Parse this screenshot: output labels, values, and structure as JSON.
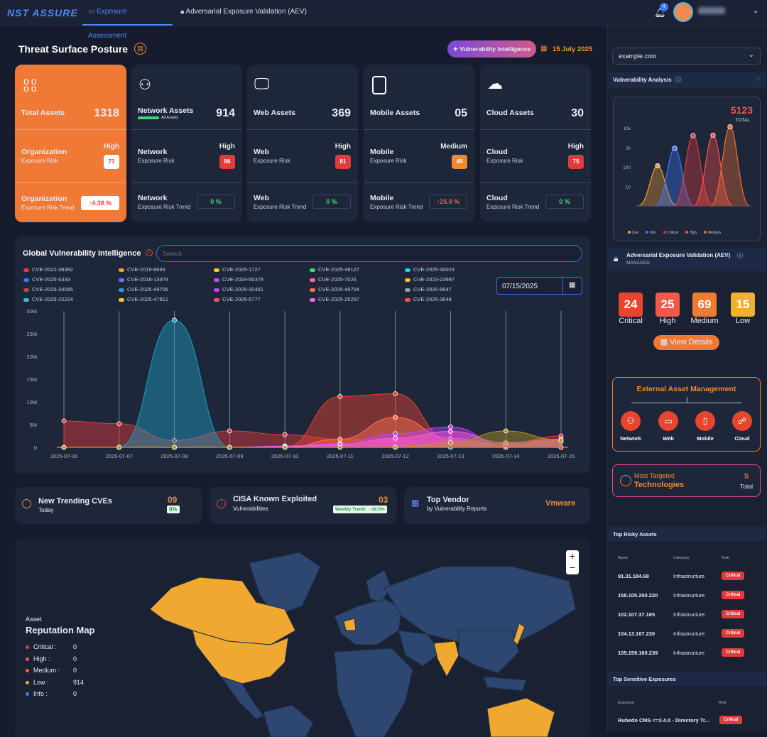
{
  "header": {
    "logo": "NST ASSURE",
    "tabs": [
      {
        "label": "Exposure Assessment",
        "active": true
      },
      {
        "label": "Adversarial Exposure Validation (AEV)",
        "active": false
      }
    ],
    "notification_count": "4",
    "user_name": "Rahul R"
  },
  "posture": {
    "title": "Threat Surface Posture",
    "vuln_intel_button": "Vulnerability Intelligence",
    "date": "15 July 2025"
  },
  "total": {
    "label": "Total Assets",
    "value": "1318",
    "org_risk_label": "Organization",
    "org_risk_sub": "Exposure Risk",
    "org_risk_level": "High",
    "org_risk_score": "73",
    "trend_label": "Organization",
    "trend_sub": "Exposure Risk Trend",
    "trend_value": "4.38 %"
  },
  "assets": [
    {
      "label": "Network Assets",
      "sub": "All Assets",
      "value": "914",
      "risk_label": "Network",
      "risk_sub": "Exposure Risk",
      "level": "High",
      "score": "86",
      "score_color": "#e23b3b",
      "trend_label": "Network",
      "trend_sub": "Exposure Risk Trend",
      "trend": "0 %",
      "trend_color": "#3ed67a"
    },
    {
      "label": "Web Assets",
      "value": "369",
      "risk_label": "Web",
      "risk_sub": "Exposure Risk",
      "level": "High",
      "score": "81",
      "score_color": "#e23b3b",
      "trend_label": "Web",
      "trend_sub": "Exposure Risk Trend",
      "trend": "0 %",
      "trend_color": "#3ed67a"
    },
    {
      "label": "Mobile Assets",
      "value": "05",
      "risk_label": "Mobile",
      "risk_sub": "Exposure Risk",
      "level": "Medium",
      "score": "49",
      "score_color": "#f08a30",
      "trend_label": "Mobile",
      "trend_sub": "Exposure Risk Trend",
      "trend": "25.9 %",
      "trend_color": "#ff5c5c"
    },
    {
      "label": "Cloud Assets",
      "value": "30",
      "risk_label": "Cloud",
      "risk_sub": "Exposure Risk",
      "level": "High",
      "score": "75",
      "score_color": "#e23b3b",
      "trend_label": "Cloud",
      "trend_sub": "Exposure Risk Trend",
      "trend": "0 %",
      "trend_color": "#3ed67a"
    }
  ],
  "gvi": {
    "title": "Global Vulnerability Intelligence",
    "search_placeholder": "Search",
    "date_value": "07/15/2025",
    "legend": [
      {
        "name": "CVE-2022-38392",
        "color": "#e23b3b"
      },
      {
        "name": "CVE-2019-6693",
        "color": "#f0a030"
      },
      {
        "name": "CVE-2025-1727",
        "color": "#e8d030"
      },
      {
        "name": "CVE-2025-49127",
        "color": "#3ed67a"
      },
      {
        "name": "CVE-2025-30023",
        "color": "#2ad0e0"
      },
      {
        "name": "CVE-2025-5333",
        "color": "#3a7aff"
      },
      {
        "name": "CVE-2018-13379",
        "color": "#7a6aff"
      },
      {
        "name": "CVE-2024-50379",
        "color": "#b050ff"
      },
      {
        "name": "CVE-2025-7026",
        "color": "#ff6a9a"
      },
      {
        "name": "CVE-2023-23997",
        "color": "#f0c020"
      },
      {
        "name": "CVE-2025-34085",
        "color": "#e23b3b"
      },
      {
        "name": "CVE-2025-49706",
        "color": "#3a90e0"
      },
      {
        "name": "CVE-2025-32461",
        "color": "#c040ff"
      },
      {
        "name": "CVE-2025-49704",
        "color": "#ff7050"
      },
      {
        "name": "CVE-2020-9547",
        "color": "#9aa0b0"
      },
      {
        "name": "CVE-2025-22224",
        "color": "#30c0d0"
      },
      {
        "name": "CVE-2025-47812",
        "color": "#f0d020"
      },
      {
        "name": "CVE-2025-5777",
        "color": "#ff5060"
      },
      {
        "name": "CVE-2025-25257",
        "color": "#ff60e0"
      },
      {
        "name": "CVE-2025-3648",
        "color": "#ff5040"
      }
    ]
  },
  "chart_data": {
    "type": "area",
    "x": [
      "2025-07-06",
      "2025-07-07",
      "2025-07-08",
      "2025-07-09",
      "2025-07-10",
      "2025-07-11",
      "2025-07-12",
      "2025-07-13",
      "2025-07-14",
      "2025-07-15"
    ],
    "yticks": [
      "0",
      "5M",
      "10M",
      "15M",
      "20M",
      "25M",
      "30M"
    ],
    "ylim": [
      0,
      30000000
    ],
    "series": [
      {
        "color": "#e23b3b",
        "values": [
          5800000,
          5200000,
          1500000,
          3600000,
          2800000,
          1800000,
          1500000,
          1200000,
          800000,
          2500000
        ]
      },
      {
        "color": "#1aa0c0",
        "values": [
          0,
          0,
          28000000,
          0,
          0,
          0,
          0,
          0,
          0,
          0
        ]
      },
      {
        "color": "#e8452f",
        "values": [
          0,
          0,
          0,
          0,
          0,
          11200000,
          11800000,
          1500000,
          0,
          0
        ]
      },
      {
        "color": "#ff7050",
        "values": [
          0,
          0,
          0,
          0,
          0,
          1800000,
          6600000,
          2000000,
          500000,
          1500000
        ]
      },
      {
        "color": "#c040ff",
        "values": [
          0,
          0,
          0,
          0,
          300000,
          800000,
          3000000,
          4500000,
          300000,
          1200000
        ]
      },
      {
        "color": "#ff60e0",
        "values": [
          0,
          0,
          0,
          0,
          200000,
          600000,
          2000000,
          3500000,
          1000000,
          1800000
        ]
      },
      {
        "color": "#b09a20",
        "values": [
          0,
          0,
          0,
          0,
          0,
          0,
          0,
          1000000,
          3600000,
          1600000
        ]
      }
    ]
  },
  "stats": {
    "trending_title": "New Trending CVEs",
    "trending_sub": "Today",
    "trending_value": "09",
    "trending_pct": "0%",
    "cisa_title": "CISA Known Exploited",
    "cisa_sub": "Vulnerabilities",
    "cisa_value": "03",
    "cisa_trend": "Weekly Trend: ↓-18.5%",
    "vendor_title": "Top Vendor",
    "vendor_sub": "by Vulnerability Reports",
    "vendor_value": "Vmware"
  },
  "map": {
    "title_small": "Asset",
    "title": "Reputation Map",
    "legend": [
      {
        "label": "Critical :",
        "value": "0",
        "color": "#e23b3b"
      },
      {
        "label": "High :",
        "value": "0",
        "color": "#ff5050"
      },
      {
        "label": "Medium :",
        "value": "0",
        "color": "#f07030"
      },
      {
        "label": "Low :",
        "value": "914",
        "color": "#f0a030"
      },
      {
        "label": "Info :",
        "value": "0",
        "color": "#3a7aff"
      }
    ]
  },
  "sidebar": {
    "domain": "example.com",
    "vuln_analysis_title": "Vulnerability Analysis",
    "total_value": "5123",
    "total_label": "TOTAL",
    "yticks": [
      "10",
      "100",
      "1k",
      "10k"
    ],
    "series_legend": [
      {
        "name": "Low",
        "color": "#f0a030"
      },
      {
        "name": "Info",
        "color": "#3a7aff"
      },
      {
        "name": "Critical",
        "color": "#e23b3b"
      },
      {
        "name": "High",
        "color": "#ff5050"
      },
      {
        "name": "Medium",
        "color": "#f07030"
      }
    ],
    "aev_title": "Adversarial Exposure Validation (AEV)",
    "aev_sub": "MANAGED",
    "severity": [
      {
        "value": "24",
        "label": "Critical",
        "color": "#e8452f"
      },
      {
        "value": "25",
        "label": "High",
        "color": "#f05a4a"
      },
      {
        "value": "69",
        "label": "Medium",
        "color": "#f07a30"
      },
      {
        "value": "15",
        "label": "Low",
        "color": "#f0b030"
      }
    ],
    "view_details": "View Details",
    "eam_title": "External Asset Management",
    "eam_nodes": [
      "Network",
      "Web",
      "Mobile",
      "Cloud"
    ],
    "targeted_title": "Most Targeted",
    "targeted_sub": "Technologies",
    "targeted_value": "5",
    "targeted_value_label": "Total",
    "risky_title": "Top Risky Assets",
    "risky_headers": [
      "Asset",
      "Category",
      "Risk"
    ],
    "risky_rows": [
      {
        "asset": "91.31.184.68",
        "category": "Infrastructure",
        "risk": "Critical"
      },
      {
        "asset": "158.105.250.220",
        "category": "Infrastructure",
        "risk": "Critical"
      },
      {
        "asset": "102.107.37.165",
        "category": "Infrastructure",
        "risk": "Critical"
      },
      {
        "asset": "104.13.167.230",
        "category": "Infrastructure",
        "risk": "Critical"
      },
      {
        "asset": "105.159.160.239",
        "category": "Infrastructure",
        "risk": "Critical"
      }
    ],
    "sensitive_title": "Top Sensitive Exposures",
    "sensitive_headers": [
      "Exposure",
      "Risk"
    ],
    "sensitive_rows": [
      {
        "exposure": "Rubedo CMS <=3.4.0 - Directory Tr...",
        "risk": "Critical"
      }
    ]
  }
}
